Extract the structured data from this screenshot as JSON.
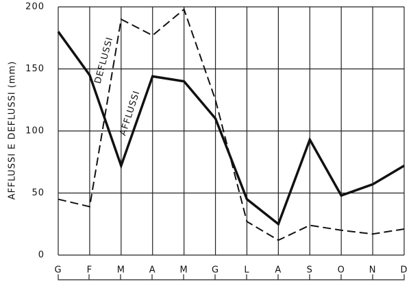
{
  "chart_data": {
    "type": "line",
    "y_label": "AFFLUSSI E DEFLUSSI (mm)",
    "categories": [
      "G",
      "F",
      "M",
      "A",
      "M",
      "G",
      "L",
      "A",
      "S",
      "O",
      "N",
      "D"
    ],
    "series": [
      {
        "name": "AFFLUSSI",
        "color": "#111111",
        "dash": "solid",
        "values": [
          180,
          145,
          72,
          144,
          140,
          110,
          45,
          25,
          93,
          48,
          57,
          72
        ]
      },
      {
        "name": "DEFLUSSI",
        "color": "#111111",
        "dash": "dashed",
        "values": [
          45,
          39,
          190,
          177,
          198,
          125,
          27,
          12,
          24,
          20,
          17,
          21
        ]
      }
    ],
    "ylim": [
      0,
      200
    ],
    "yticks": [
      0,
      50,
      100,
      150,
      200
    ],
    "grid": true
  }
}
